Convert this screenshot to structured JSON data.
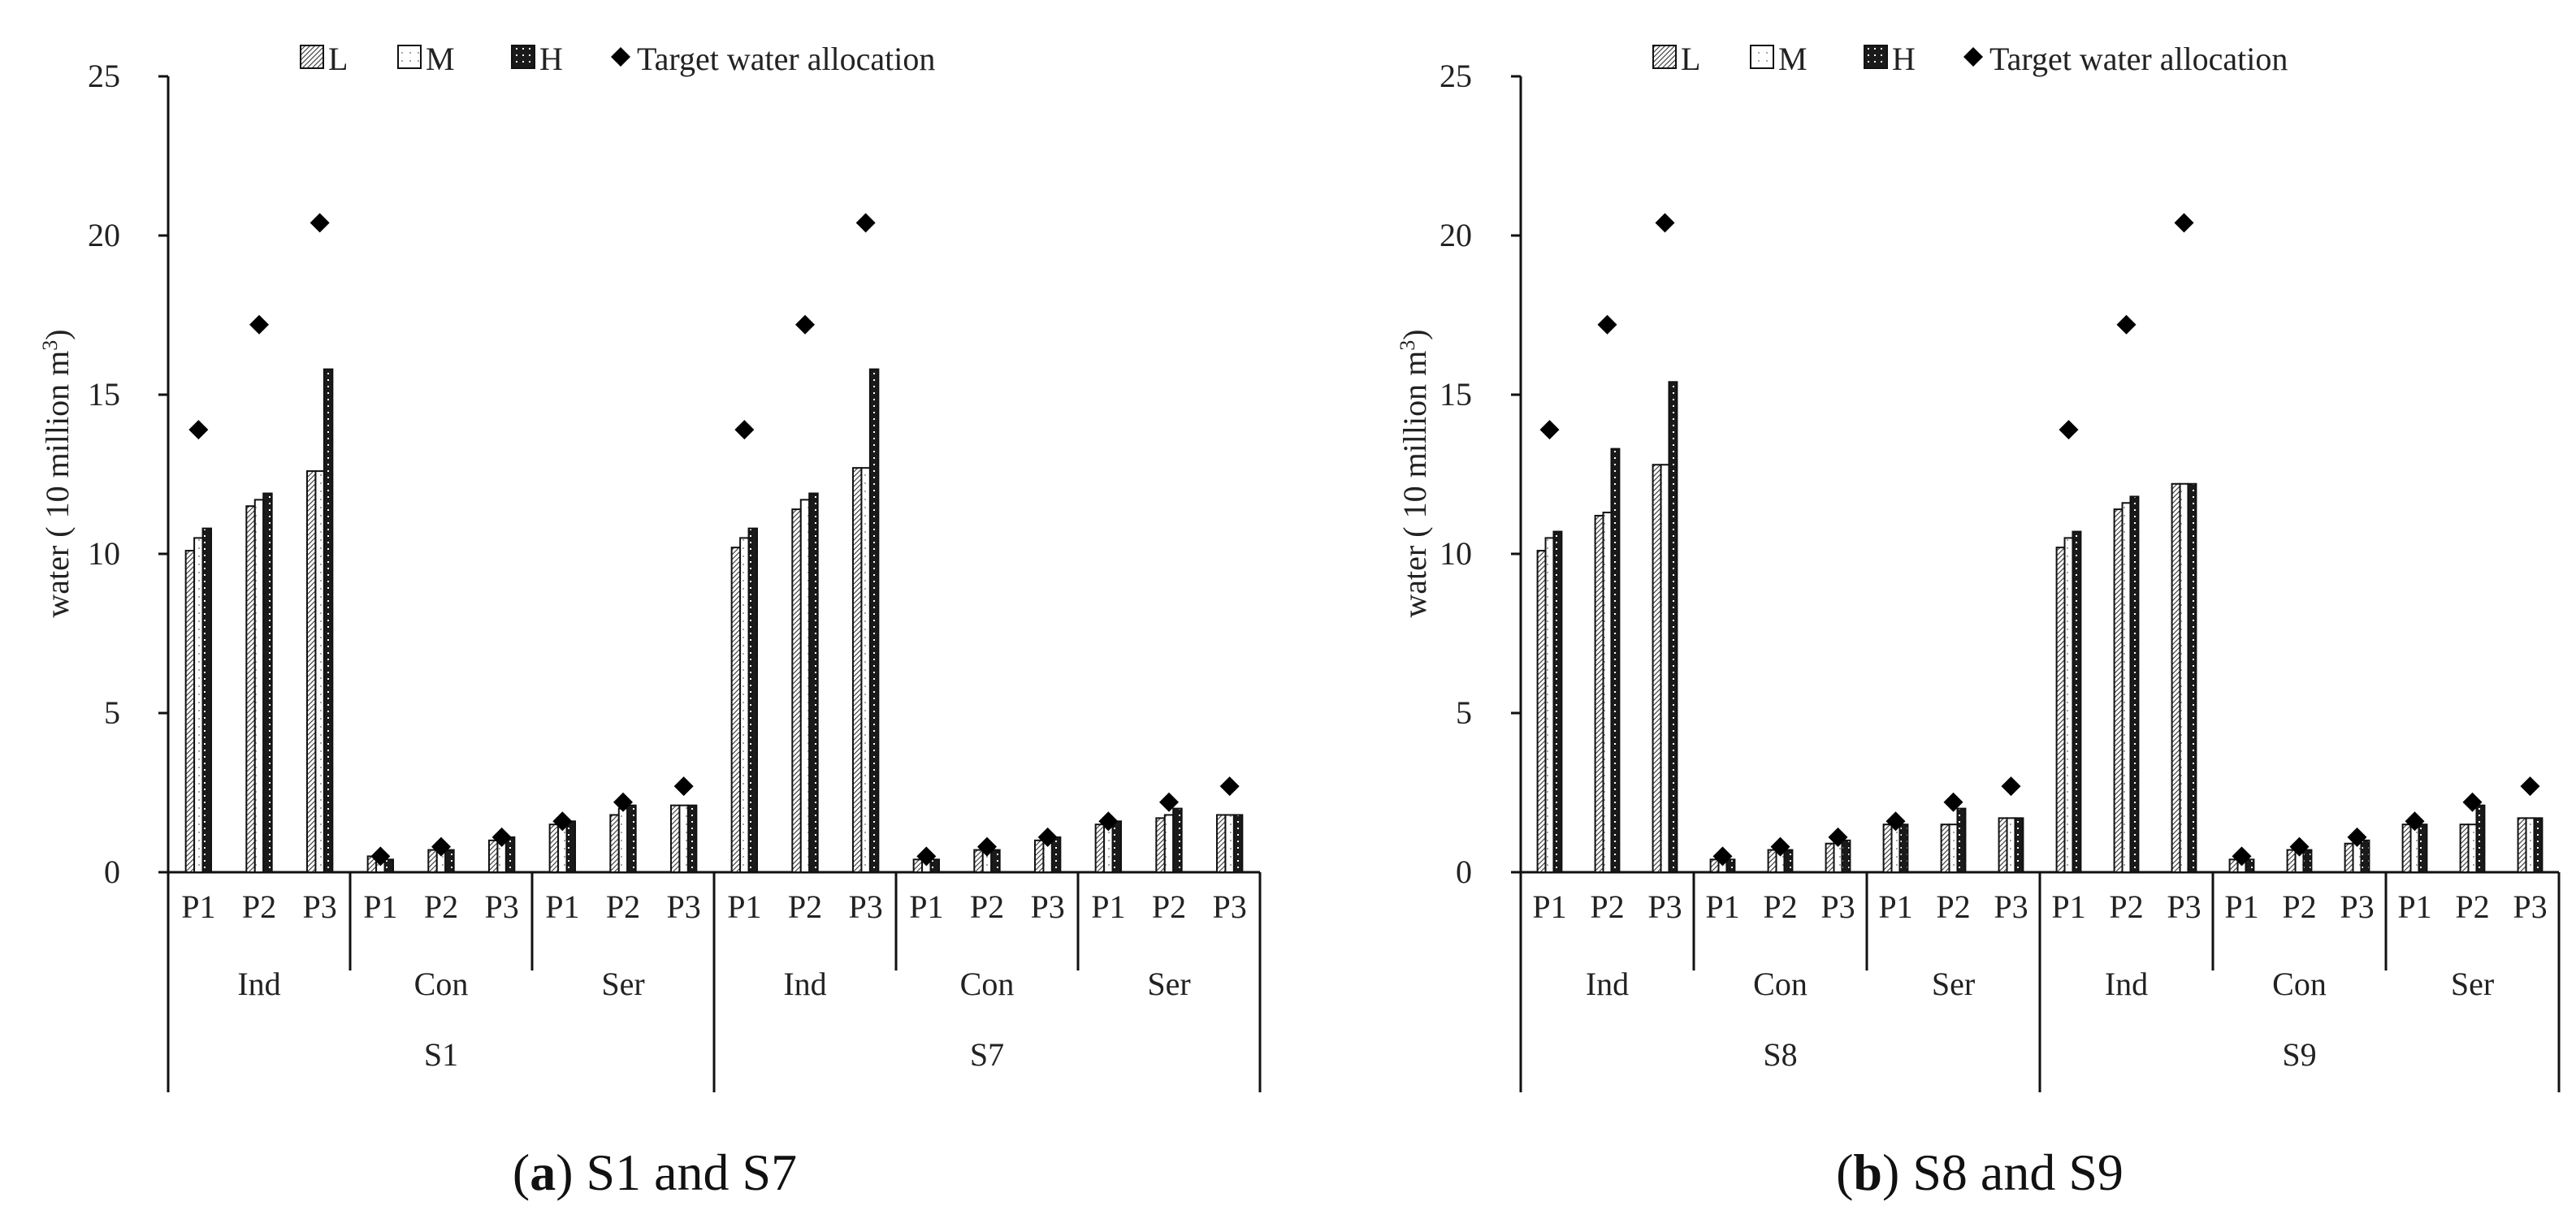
{
  "figure": {
    "captions": [
      {
        "label": "a",
        "text": " S1 and S7"
      },
      {
        "label": "b",
        "text": " S8 and S9"
      }
    ]
  },
  "chart_data": [
    {
      "type": "bar",
      "panel": "a",
      "title": "",
      "ylabel": "water ( 10 million m",
      "ylabel_sup": "3",
      "ylabel_end": ")",
      "ylim": [
        0,
        25
      ],
      "yticks": [
        "0",
        "5",
        "10",
        "15",
        "20",
        "25"
      ],
      "legend": {
        "placement": "top",
        "entries": [
          "L",
          "M",
          "H",
          "Target water allocation"
        ]
      },
      "groups": [
        {
          "scenario": "S1",
          "sectors": [
            {
              "name": "Ind",
              "periods": [
                "P1",
                "P2",
                "P3"
              ],
              "L": [
                10.1,
                11.5,
                12.6
              ],
              "M": [
                10.5,
                11.7,
                12.6
              ],
              "H": [
                10.8,
                11.9,
                15.8
              ],
              "target": [
                13.9,
                17.2,
                20.4
              ]
            },
            {
              "name": "Con",
              "periods": [
                "P1",
                "P2",
                "P3"
              ],
              "L": [
                0.5,
                0.7,
                1.0
              ],
              "M": [
                0.5,
                0.8,
                1.1
              ],
              "H": [
                0.4,
                0.7,
                1.1
              ],
              "target": [
                0.5,
                0.8,
                1.1
              ]
            },
            {
              "name": "Ser",
              "periods": [
                "P1",
                "P2",
                "P3"
              ],
              "L": [
                1.5,
                1.8,
                2.1
              ],
              "M": [
                1.6,
                2.0,
                2.1
              ],
              "H": [
                1.6,
                2.1,
                2.1
              ],
              "target": [
                1.6,
                2.2,
                2.7
              ]
            }
          ]
        },
        {
          "scenario": "S7",
          "sectors": [
            {
              "name": "Ind",
              "periods": [
                "P1",
                "P2",
                "P3"
              ],
              "L": [
                10.2,
                11.4,
                12.7
              ],
              "M": [
                10.5,
                11.7,
                12.7
              ],
              "H": [
                10.8,
                11.9,
                15.8
              ],
              "target": [
                13.9,
                17.2,
                20.4
              ]
            },
            {
              "name": "Con",
              "periods": [
                "P1",
                "P2",
                "P3"
              ],
              "L": [
                0.4,
                0.7,
                1.0
              ],
              "M": [
                0.5,
                0.8,
                1.1
              ],
              "H": [
                0.4,
                0.7,
                1.1
              ],
              "target": [
                0.5,
                0.8,
                1.1
              ]
            },
            {
              "name": "Ser",
              "periods": [
                "P1",
                "P2",
                "P3"
              ],
              "L": [
                1.5,
                1.7,
                1.8
              ],
              "M": [
                1.6,
                1.8,
                1.8
              ],
              "H": [
                1.6,
                2.0,
                1.8
              ],
              "target": [
                1.6,
                2.2,
                2.7
              ]
            }
          ]
        }
      ]
    },
    {
      "type": "bar",
      "panel": "b",
      "title": "",
      "ylabel": "water ( 10 million m",
      "ylabel_sup": "3",
      "ylabel_end": ")",
      "ylim": [
        0,
        25
      ],
      "yticks": [
        "0",
        "5",
        "10",
        "15",
        "20",
        "25"
      ],
      "legend": {
        "placement": "top",
        "entries": [
          "L",
          "M",
          "H",
          "Target water allocation"
        ]
      },
      "groups": [
        {
          "scenario": "S8",
          "sectors": [
            {
              "name": "Ind",
              "periods": [
                "P1",
                "P2",
                "P3"
              ],
              "L": [
                10.1,
                11.2,
                12.8
              ],
              "M": [
                10.5,
                11.3,
                12.8
              ],
              "H": [
                10.7,
                13.3,
                15.4
              ],
              "target": [
                13.9,
                17.2,
                20.4
              ]
            },
            {
              "name": "Con",
              "periods": [
                "P1",
                "P2",
                "P3"
              ],
              "L": [
                0.4,
                0.7,
                0.9
              ],
              "M": [
                0.5,
                0.7,
                1.0
              ],
              "H": [
                0.4,
                0.7,
                1.0
              ],
              "target": [
                0.5,
                0.8,
                1.1
              ]
            },
            {
              "name": "Ser",
              "periods": [
                "P1",
                "P2",
                "P3"
              ],
              "L": [
                1.5,
                1.5,
                1.7
              ],
              "M": [
                1.6,
                1.5,
                1.7
              ],
              "H": [
                1.5,
                2.0,
                1.7
              ],
              "target": [
                1.6,
                2.2,
                2.7
              ]
            }
          ]
        },
        {
          "scenario": "S9",
          "sectors": [
            {
              "name": "Ind",
              "periods": [
                "P1",
                "P2",
                "P3"
              ],
              "L": [
                10.2,
                11.4,
                12.2
              ],
              "M": [
                10.5,
                11.6,
                12.2
              ],
              "H": [
                10.7,
                11.8,
                12.2
              ],
              "target": [
                13.9,
                17.2,
                20.4
              ]
            },
            {
              "name": "Con",
              "periods": [
                "P1",
                "P2",
                "P3"
              ],
              "L": [
                0.4,
                0.7,
                0.9
              ],
              "M": [
                0.5,
                0.7,
                1.0
              ],
              "H": [
                0.4,
                0.7,
                1.0
              ],
              "target": [
                0.5,
                0.8,
                1.1
              ]
            },
            {
              "name": "Ser",
              "periods": [
                "P1",
                "P2",
                "P3"
              ],
              "L": [
                1.5,
                1.5,
                1.7
              ],
              "M": [
                1.6,
                1.5,
                1.7
              ],
              "H": [
                1.5,
                2.1,
                1.7
              ],
              "target": [
                1.6,
                2.2,
                2.7
              ]
            }
          ]
        }
      ]
    }
  ]
}
